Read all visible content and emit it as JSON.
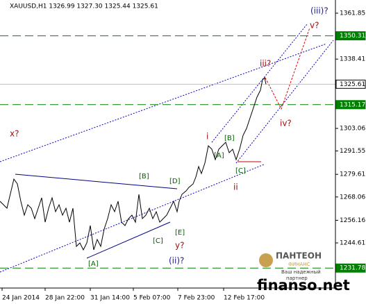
{
  "chart_data": {
    "type": "line",
    "title": "XAUUSD,H1  1326.99 1327.30 1325.44 1325.61",
    "x": [
      0,
      5,
      10,
      12.5,
      15,
      17.5,
      20,
      22.5,
      25,
      27.5,
      30,
      32.5,
      35,
      37.5,
      40,
      42.5,
      45,
      47.5,
      50,
      52.5,
      55,
      57.5,
      60,
      62.5,
      65,
      67.5,
      70,
      72.5,
      75,
      77.5,
      80,
      82.5,
      85,
      87.5,
      90,
      92.5,
      95,
      97.5,
      100,
      102.5,
      105,
      107.5,
      110,
      112.5,
      115,
      117.5,
      120,
      122.5,
      125,
      127.5,
      129,
      131,
      134,
      136,
      139,
      141,
      143,
      145,
      147.5,
      150,
      152.5,
      155,
      157.5,
      160,
      162.5,
      165,
      167.5,
      170,
      172.5,
      175,
      177.5,
      180,
      182.5,
      185,
      187.5,
      189,
      190.5,
      191.5
    ],
    "series": [
      {
        "name": "XAUUSD",
        "color": "#000000",
        "values": [
          1265.85,
          1262.31,
          1277.19,
          1274.71,
          1265.85,
          1258.77,
          1264.08,
          1262.31,
          1257.0,
          1262.31,
          1267.62,
          1255.22,
          1262.31,
          1267.62,
          1260.54,
          1264.08,
          1258.77,
          1262.31,
          1255.22,
          1262.31,
          1242.83,
          1244.6,
          1241.06,
          1244.6,
          1253.45,
          1241.06,
          1246.37,
          1242.83,
          1251.68,
          1257.0,
          1264.08,
          1260.54,
          1265.85,
          1255.22,
          1253.45,
          1257.0,
          1258.77,
          1255.22,
          1269.4,
          1257.0,
          1258.77,
          1262.31,
          1257.0,
          1260.54,
          1255.22,
          1257.0,
          1258.77,
          1262.31,
          1265.85,
          1260.54,
          1265.85,
          1269.4,
          1271.17,
          1272.94,
          1274.71,
          1278.25,
          1283.56,
          1280.02,
          1285.34,
          1294.19,
          1292.42,
          1287.11,
          1292.42,
          1294.19,
          1295.96,
          1290.65,
          1292.42,
          1287.11,
          1292.42,
          1299.5,
          1303.05,
          1308.36,
          1313.67,
          1318.99,
          1322.53,
          1327.84,
          1328.91,
          1325.61
        ]
      }
    ],
    "xlim": [
      0,
      241.5
    ],
    "xticks": [
      {
        "value": 1.5,
        "label": "24 Jan 2014"
      },
      {
        "value": 32.5,
        "label": "28 Jan 22:00"
      },
      {
        "value": 65,
        "label": "31 Jan 14:00"
      },
      {
        "value": 96,
        "label": "5 Feb 07:00"
      },
      {
        "value": 128,
        "label": "7 Feb 23:00"
      },
      {
        "value": 161,
        "label": "12 Feb 17:00"
      }
    ],
    "ylim": [
      1221.59,
      1368.58
    ],
    "yticks": [
      1361.85,
      1338.41,
      1303.06,
      1291.55,
      1279.61,
      1268.06,
      1256.16,
      1244.61
    ],
    "levels": [
      {
        "value": 1350.31,
        "color": "#008000"
      },
      {
        "value": 1325.61,
        "color": "#c0c0c0"
      },
      {
        "value": 1315.17,
        "color": "#008000"
      },
      {
        "value": 1231.78,
        "color": "#008000"
      }
    ],
    "annotations": [
      "x?",
      "[B]",
      "[D]",
      "[A]",
      "[C]",
      "[E]",
      "y?",
      "(ii)?",
      "i",
      "[B]",
      "[A]",
      "[C]",
      "ii",
      "iii?",
      "iv?",
      "(iii)?",
      "v?"
    ],
    "watermark": [
      "ПАНТЕОН",
      "ФИНАНС",
      "Ваш надежный",
      "партнер",
      "finanso.net"
    ]
  }
}
